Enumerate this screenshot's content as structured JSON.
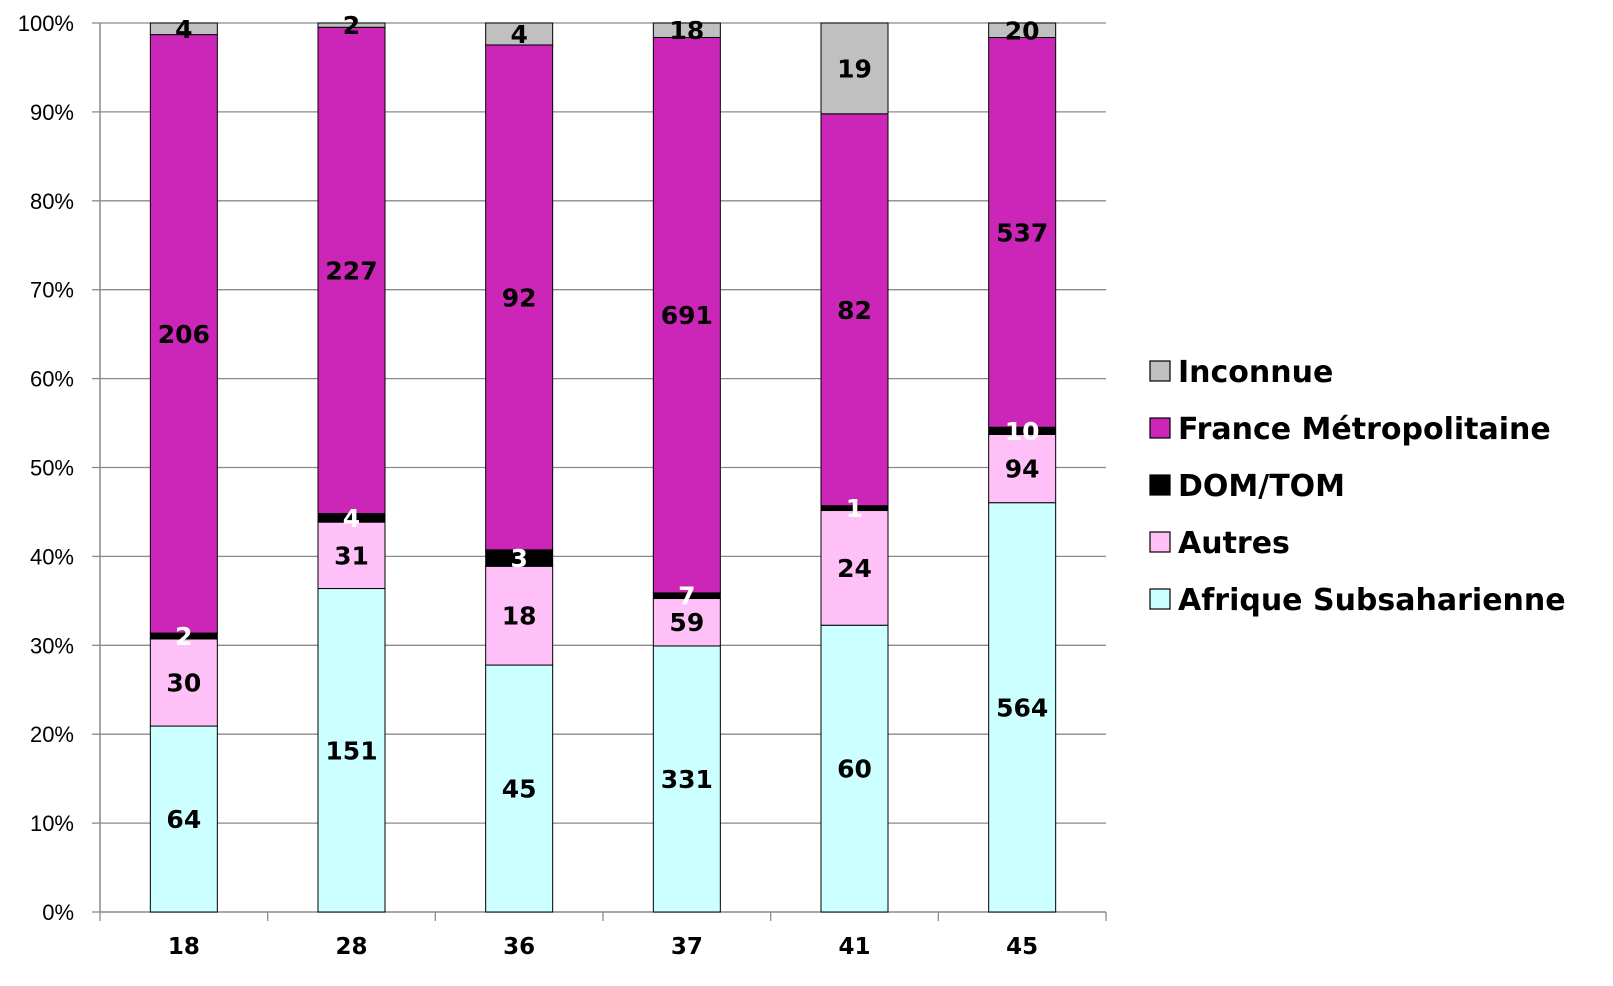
{
  "chart_data": {
    "type": "bar",
    "stacked": true,
    "normalized": true,
    "categories": [
      "18",
      "28",
      "36",
      "37",
      "41",
      "45"
    ],
    "series": [
      {
        "name": "Afrique Subsaharienne",
        "color": "#ccffff",
        "label_color": "#000000",
        "values": [
          64,
          151,
          45,
          331,
          60,
          564
        ]
      },
      {
        "name": "Autres",
        "color": "#ffc0f8",
        "label_color": "#000000",
        "values": [
          30,
          31,
          18,
          59,
          24,
          94
        ]
      },
      {
        "name": "DOM/TOM",
        "color": "#000000",
        "label_color": "#ffffff",
        "values": [
          2,
          4,
          3,
          7,
          1,
          10
        ]
      },
      {
        "name": "France Métropolitaine",
        "color": "#cc26b8",
        "label_color": "#000000",
        "values": [
          206,
          227,
          92,
          691,
          82,
          537
        ]
      },
      {
        "name": "Inconnue",
        "color": "#c0c0c0",
        "label_color": "#000000",
        "values": [
          4,
          2,
          4,
          18,
          19,
          20
        ]
      }
    ],
    "y_ticks": [
      "0%",
      "10%",
      "20%",
      "30%",
      "40%",
      "50%",
      "60%",
      "70%",
      "80%",
      "90%",
      "100%"
    ],
    "ylim": [
      0,
      100
    ],
    "grid": true,
    "legend_position": "right",
    "legend_order": [
      "Inconnue",
      "France Métropolitaine",
      "DOM/TOM",
      "Autres",
      "Afrique Subsaharienne"
    ],
    "title": "",
    "xlabel": "",
    "ylabel": ""
  }
}
